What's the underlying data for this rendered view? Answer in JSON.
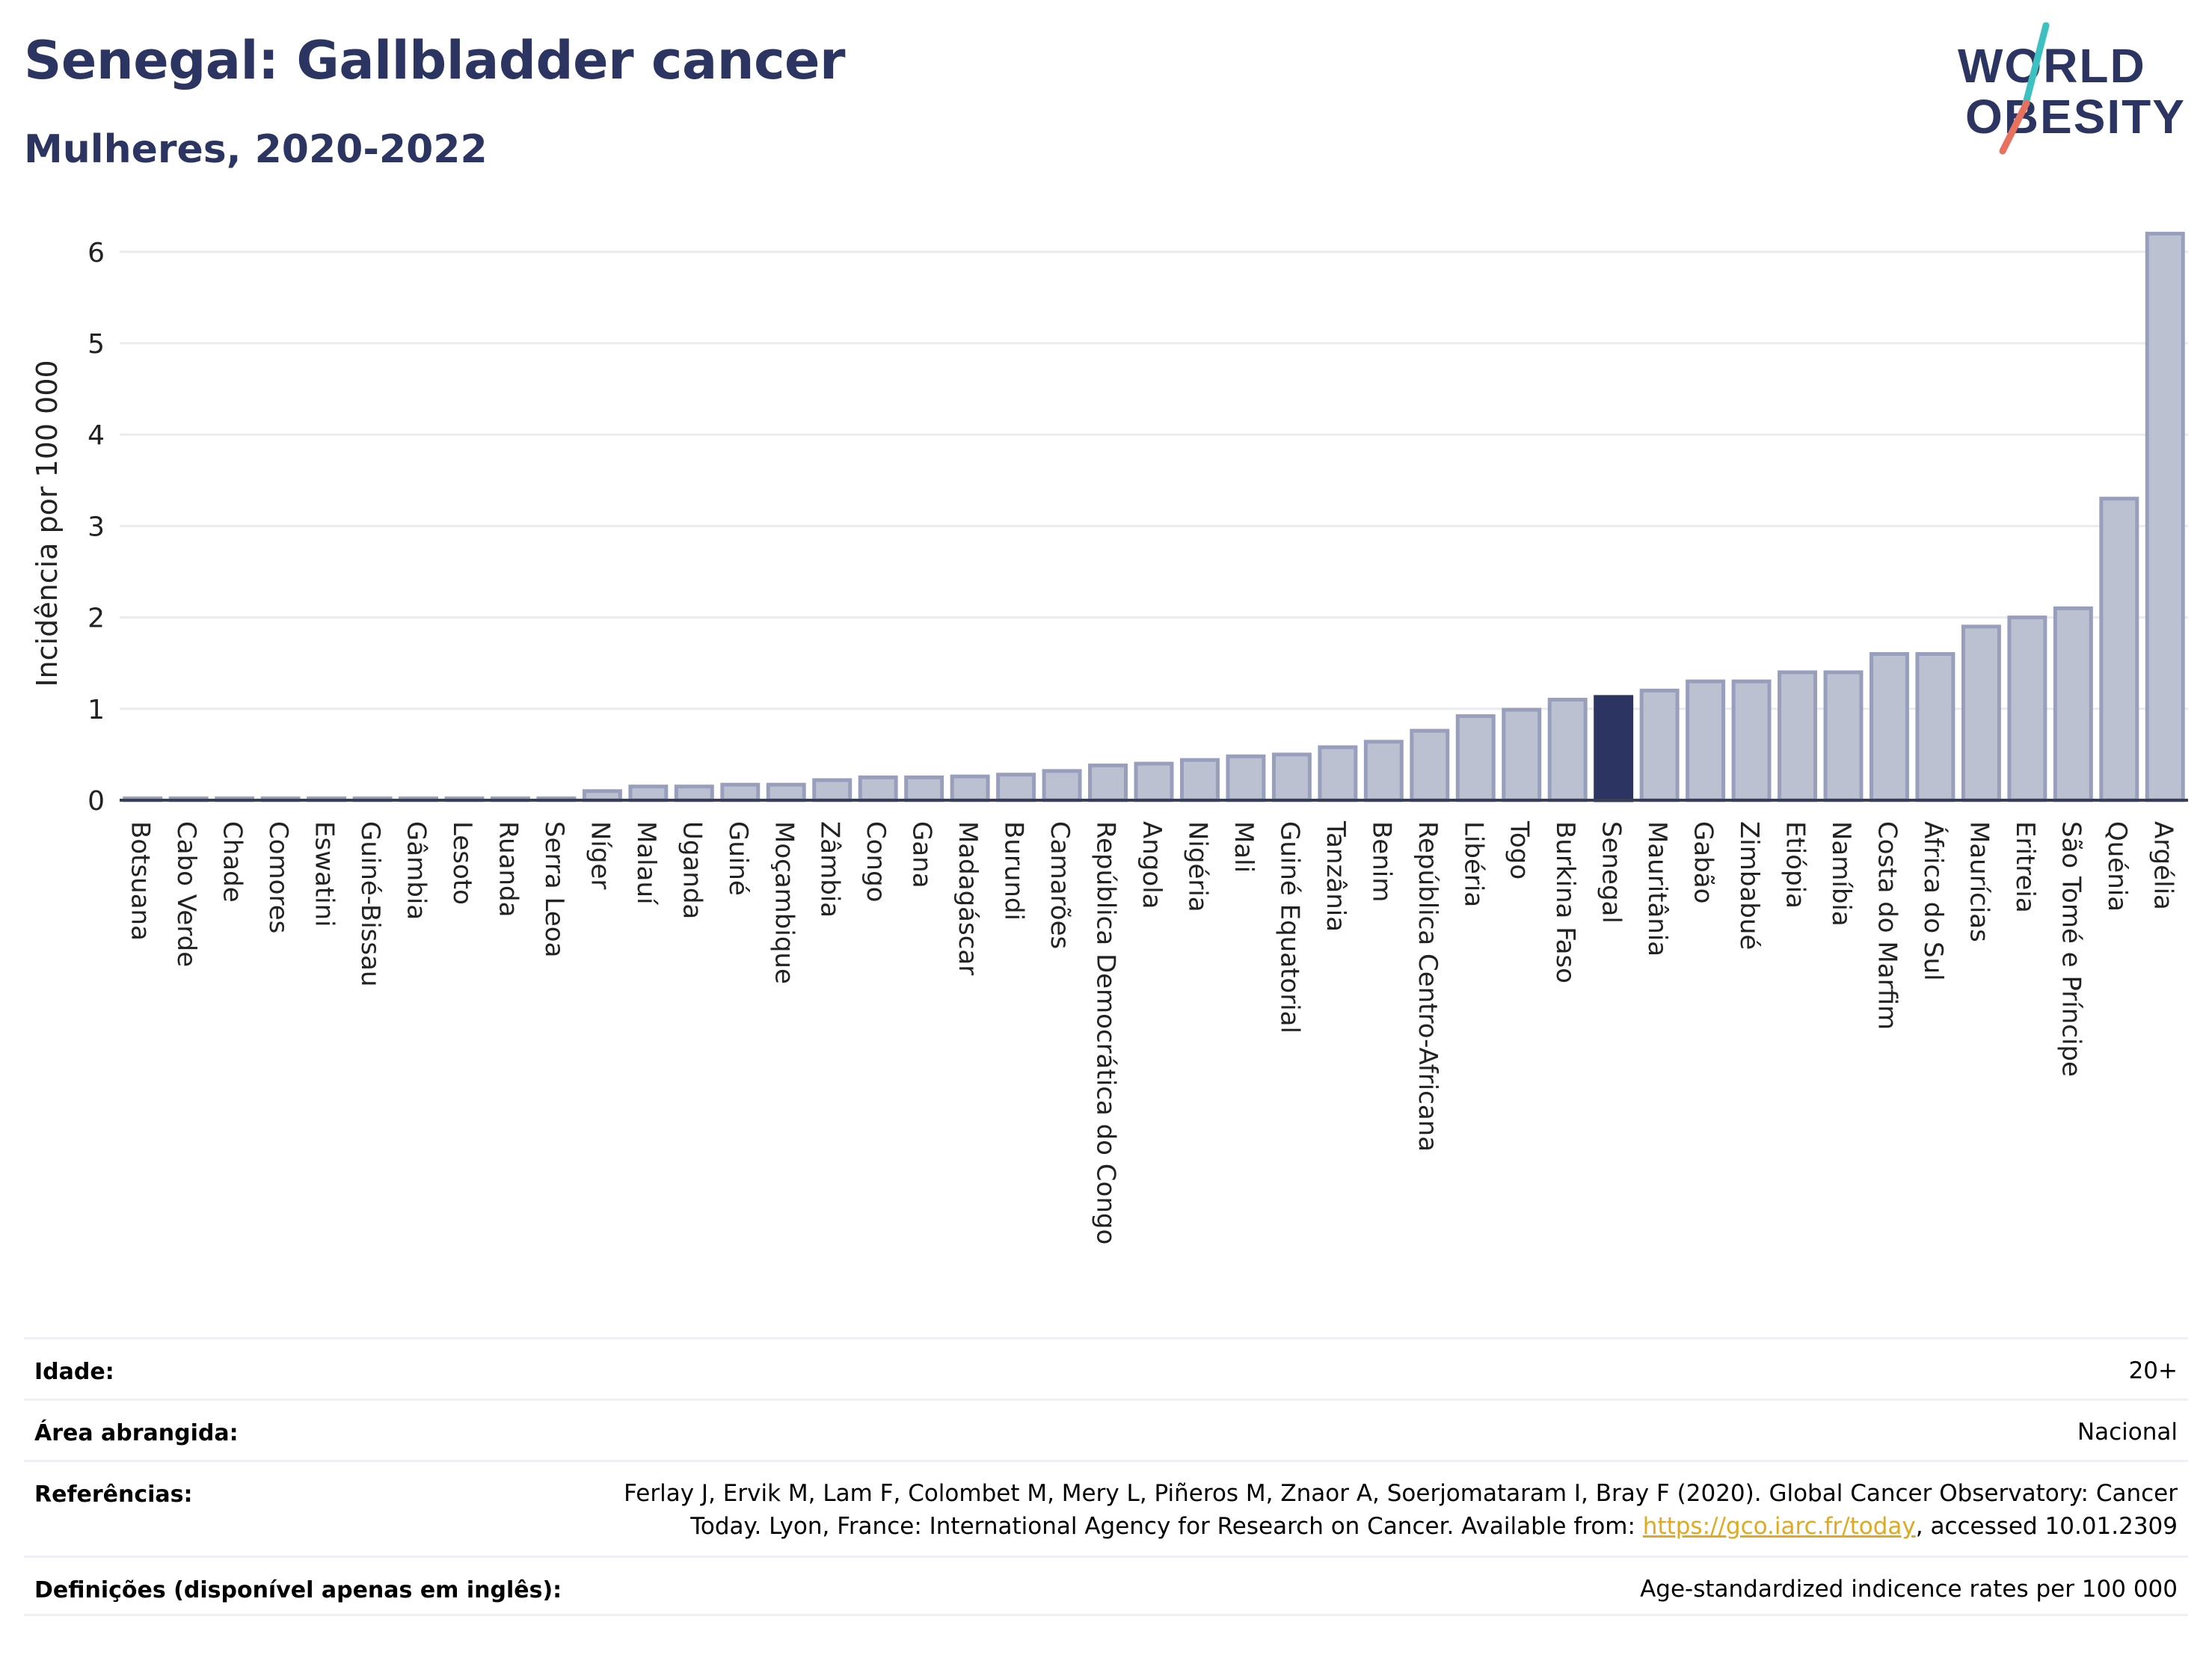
{
  "header": {
    "title": "Senegal: Gallbladder cancer",
    "subtitle": "Mulheres, 2020-2022"
  },
  "logo": {
    "line1": "WORLD",
    "line2": "OBESITY",
    "colors": {
      "text": "#2c3562",
      "slash_top": "#3cc0c0",
      "slash_bottom": "#e8705f"
    }
  },
  "colors": {
    "bar_fill": "#bcc1d1",
    "bar_stroke": "#979fbd",
    "highlight": "#2c3562",
    "grid": "#e9ebf0",
    "axis": "#3a3f58"
  },
  "chart_data": {
    "type": "bar",
    "title": "Senegal: Gallbladder cancer",
    "subtitle": "Mulheres, 2020-2022",
    "ylabel": "Incidência por 100 000",
    "xlabel": "",
    "ylim": [
      0,
      6.6
    ],
    "yticks": [
      0,
      1,
      2,
      3,
      4,
      5,
      6
    ],
    "highlight": "Senegal",
    "categories": [
      "Botsuana",
      "Cabo Verde",
      "Chade",
      "Comores",
      "Eswatini",
      "Guiné-Bissau",
      "Gâmbia",
      "Lesoto",
      "Ruanda",
      "Serra Leoa",
      "Níger",
      "Malauí",
      "Uganda",
      "Guiné",
      "Moçambique",
      "Zâmbia",
      "Congo",
      "Gana",
      "Madagáscar",
      "Burundi",
      "Camarões",
      "República Democrática do Congo",
      "Angola",
      "Nigéria",
      "Mali",
      "Guiné Equatorial",
      "Tanzânia",
      "Benim",
      "República Centro-Africana",
      "Libéria",
      "Togo",
      "Burkina Faso",
      "Senegal",
      "Mauritânia",
      "Gabão",
      "Zimbabué",
      "Etiópia",
      "Namíbia",
      "Costa do Marfim",
      "África do Sul",
      "Maurícias",
      "Eritreia",
      "São Tomé e Príncipe",
      "Quénia",
      "Argélia"
    ],
    "values": [
      0.02,
      0.02,
      0.02,
      0.02,
      0.02,
      0.02,
      0.02,
      0.02,
      0.02,
      0.02,
      0.1,
      0.15,
      0.15,
      0.17,
      0.17,
      0.22,
      0.25,
      0.25,
      0.26,
      0.28,
      0.32,
      0.38,
      0.4,
      0.44,
      0.48,
      0.5,
      0.58,
      0.64,
      0.76,
      0.92,
      0.99,
      1.1,
      1.13,
      1.2,
      1.3,
      1.3,
      1.4,
      1.4,
      1.6,
      1.6,
      1.9,
      2.0,
      2.1,
      3.3,
      6.2
    ],
    "grid": true,
    "legend": "none"
  },
  "info": {
    "rows": [
      {
        "label": "Idade:",
        "value": "20+"
      },
      {
        "label": "Área abrangida:",
        "value": "Nacional"
      },
      {
        "label": "Referências:",
        "value_line1": "Ferlay J, Ervik M, Lam F, Colombet M, Mery L, Piñeros M, Znaor A, Soerjomataram I, Bray F (2020). Global Cancer Observatory: Cancer",
        "value_line2_pre": "Today. Lyon, France: International Agency for Research on Cancer. Available from: ",
        "link": "https://gco.iarc.fr/today",
        "value_line2_post": ", accessed 10.01.2309"
      },
      {
        "label": "Definições (disponível apenas em inglês):",
        "value": "Age-standardized indicence rates per 100 000"
      }
    ]
  }
}
